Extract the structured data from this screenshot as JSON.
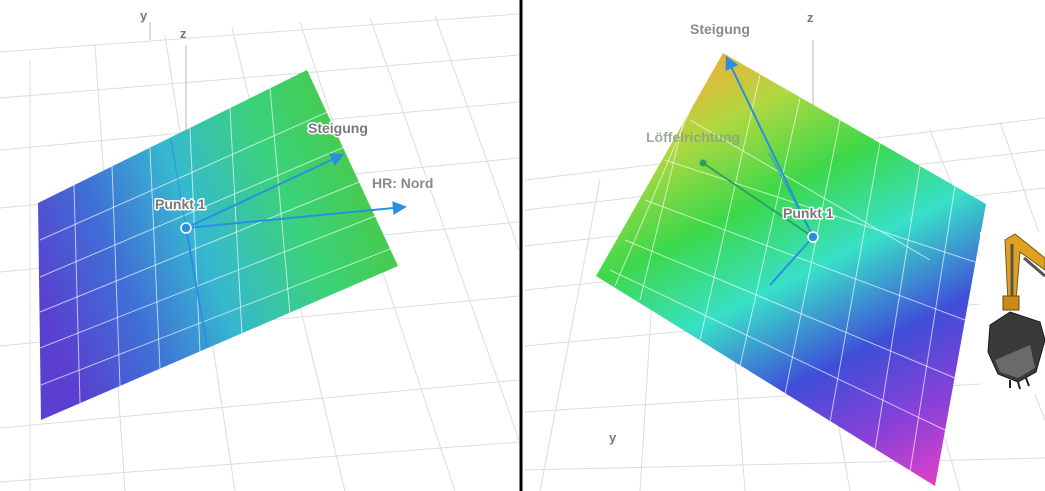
{
  "left_view": {
    "axis_labels": {
      "y": "y",
      "z": "z"
    },
    "labels": {
      "point": "Punkt 1",
      "slope": "Steigung",
      "main_direction": "HR: Nord"
    }
  },
  "right_view": {
    "axis_labels": {
      "z": "z",
      "y": "y"
    },
    "labels": {
      "slope": "Steigung",
      "bucket_direction": "Löffelrichtung",
      "point": "Punkt 1"
    }
  },
  "colors": {
    "vector": "#2a8fe0",
    "bucket_vector": "#28a060",
    "divider": "#000000",
    "label_gray": "#8a8a8a"
  }
}
